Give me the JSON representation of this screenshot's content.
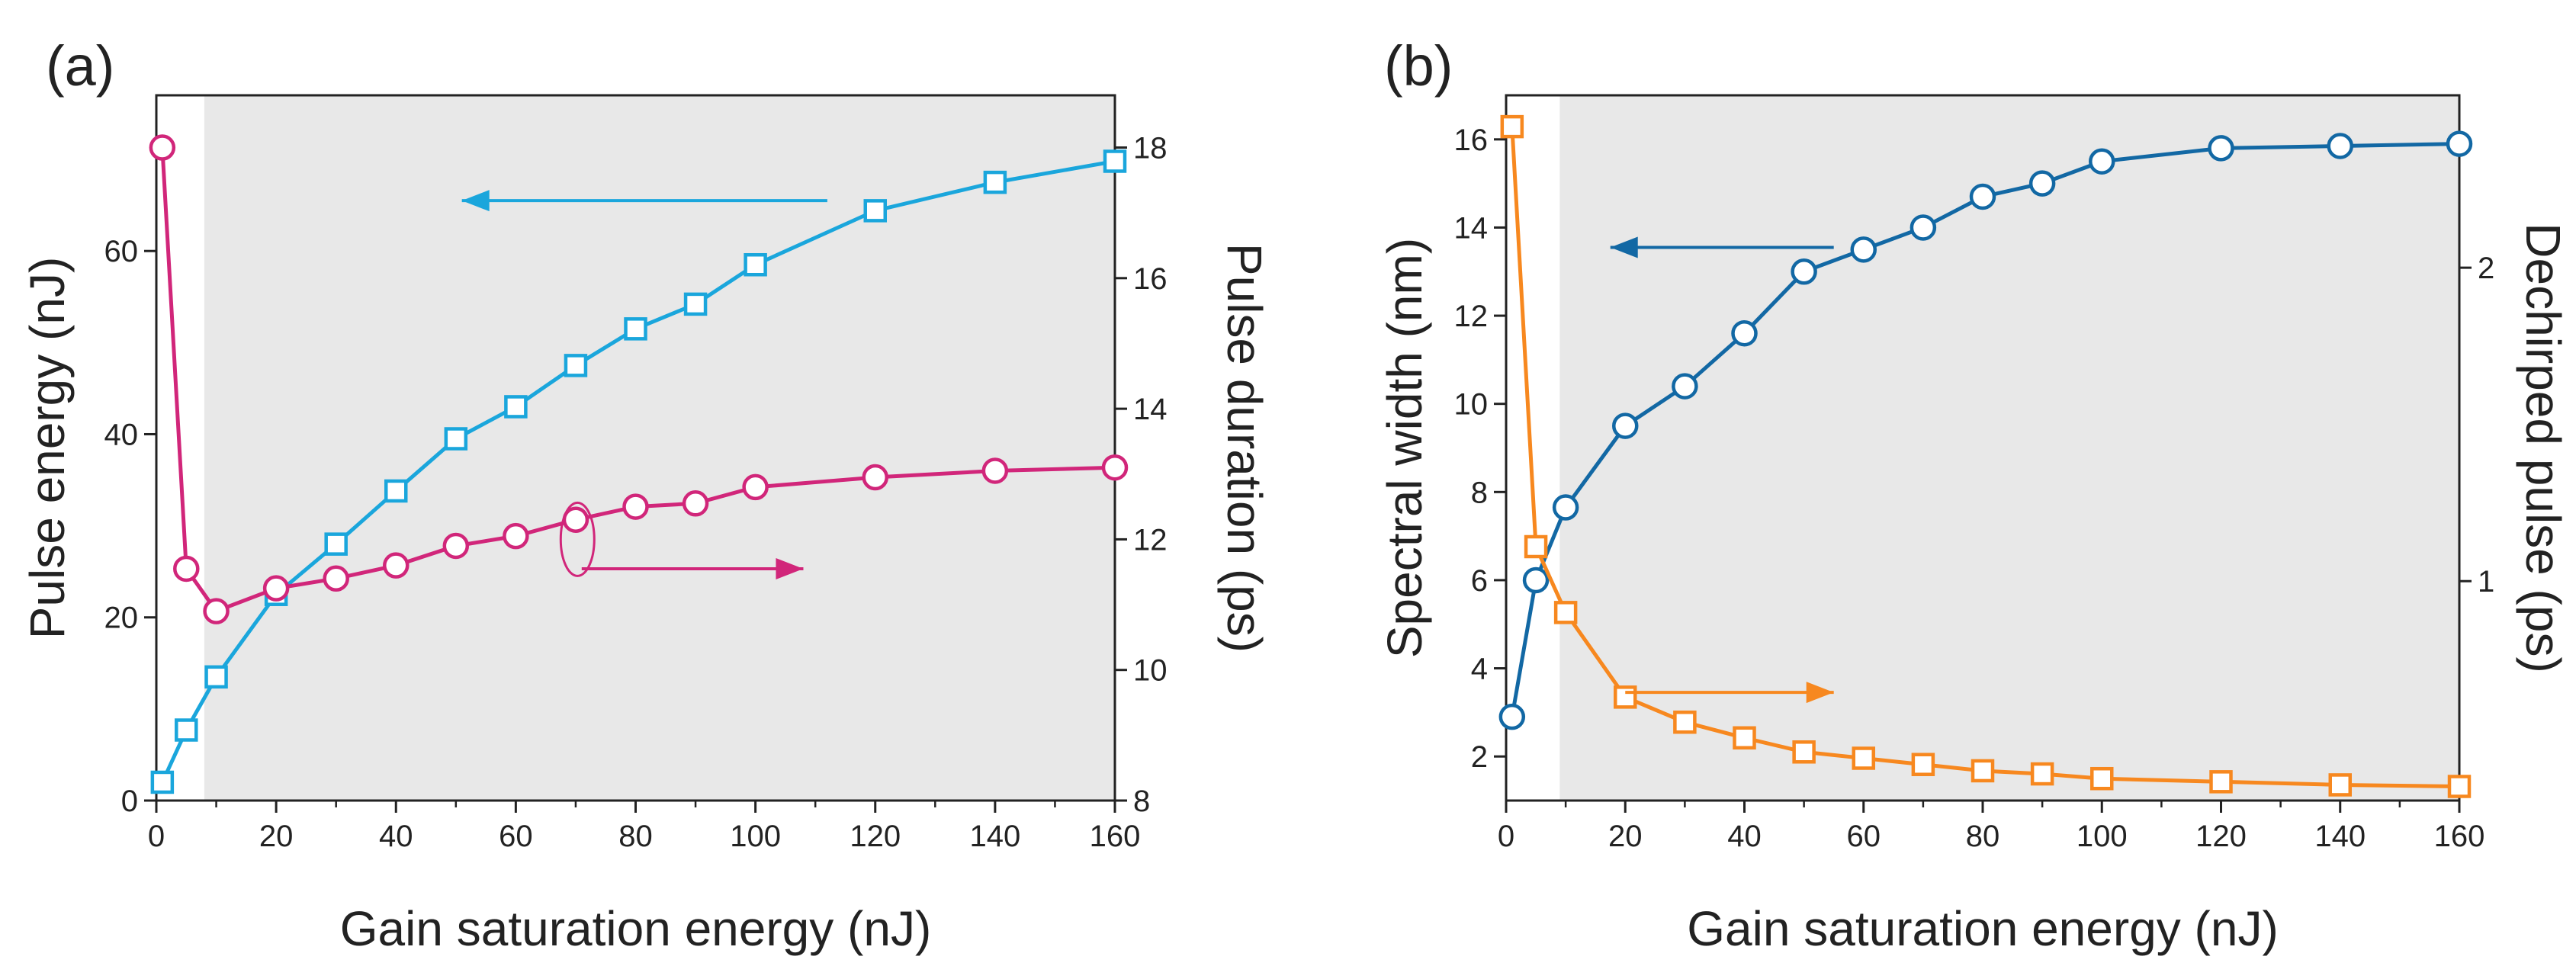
{
  "chart_data": [
    {
      "panel_label": "(a)",
      "type": "line",
      "xlabel": "Gain saturation energy (nJ)",
      "ylabel_left": "Pulse energy (nJ)",
      "ylabel_right": "Pulse duration (ps)",
      "xlim": [
        0,
        160
      ],
      "ylim_left": [
        0,
        77
      ],
      "ylim_right": [
        8,
        18.8
      ],
      "xticks": [
        0,
        20,
        40,
        60,
        80,
        100,
        120,
        140,
        160
      ],
      "yticks_left": [
        0,
        20,
        40,
        60
      ],
      "yticks_right": [
        8,
        10,
        12,
        14,
        16,
        18
      ],
      "shaded_region_x": [
        8,
        160
      ],
      "series": [
        {
          "name": "Pulse energy",
          "axis": "left",
          "marker": "square",
          "color": "#1aa6dc",
          "x": [
            1,
            5,
            10,
            20,
            30,
            40,
            50,
            60,
            70,
            80,
            90,
            100,
            120,
            140,
            160
          ],
          "values": [
            2,
            7.7,
            13.5,
            22.5,
            28,
            33.8,
            39.5,
            43,
            47.5,
            51.5,
            54.2,
            58.5,
            64.4,
            67.5,
            69.8
          ]
        },
        {
          "name": "Pulse duration",
          "axis": "right",
          "marker": "circle",
          "color": "#d1267a",
          "x": [
            1,
            5,
            10,
            20,
            30,
            40,
            50,
            60,
            70,
            80,
            90,
            100,
            120,
            140,
            160
          ],
          "values": [
            18,
            11.55,
            10.9,
            11.25,
            11.4,
            11.6,
            11.9,
            12.05,
            12.3,
            12.5,
            12.55,
            12.8,
            12.95,
            13.05,
            13.1
          ]
        }
      ],
      "annotations": [
        {
          "type": "arrow",
          "direction": "left",
          "series": "Pulse energy"
        },
        {
          "type": "arrow",
          "direction": "right",
          "series": "Pulse duration"
        }
      ]
    },
    {
      "panel_label": "(b)",
      "type": "line",
      "xlabel": "Gain saturation energy (nJ)",
      "ylabel_left": "Spectral width (nm)",
      "ylabel_right": "Dechirped pulse (ps)",
      "xlim": [
        0,
        160
      ],
      "ylim_left": [
        1,
        17
      ],
      "ylim_right": [
        0.3,
        2.55
      ],
      "xticks": [
        0,
        20,
        40,
        60,
        80,
        100,
        120,
        140,
        160
      ],
      "yticks_left": [
        2,
        4,
        6,
        8,
        10,
        12,
        14,
        16
      ],
      "yticks_right": [
        1,
        2
      ],
      "shaded_region_x": [
        9,
        160
      ],
      "series": [
        {
          "name": "Spectral width",
          "axis": "left",
          "marker": "circle",
          "color": "#1268a4",
          "x": [
            1,
            5,
            10,
            20,
            30,
            40,
            50,
            60,
            70,
            80,
            90,
            100,
            120,
            140,
            160
          ],
          "values": [
            2.9,
            6,
            7.65,
            9.5,
            10.4,
            11.6,
            13,
            13.5,
            14,
            14.7,
            15,
            15.5,
            15.8,
            15.85,
            15.9
          ]
        },
        {
          "name": "Dechirped pulse",
          "axis": "right",
          "marker": "square",
          "color": "#f7881f",
          "x": [
            1,
            5,
            10,
            20,
            30,
            40,
            50,
            60,
            70,
            80,
            90,
            100,
            120,
            140,
            160
          ],
          "values": [
            2.45,
            1.11,
            0.9,
            0.63,
            0.55,
            0.5,
            0.455,
            0.435,
            0.415,
            0.395,
            0.385,
            0.37,
            0.36,
            0.35,
            0.345
          ]
        }
      ],
      "annotations": [
        {
          "type": "arrow",
          "direction": "left",
          "series": "Spectral width"
        },
        {
          "type": "arrow",
          "direction": "right",
          "series": "Dechirped pulse"
        }
      ]
    }
  ]
}
